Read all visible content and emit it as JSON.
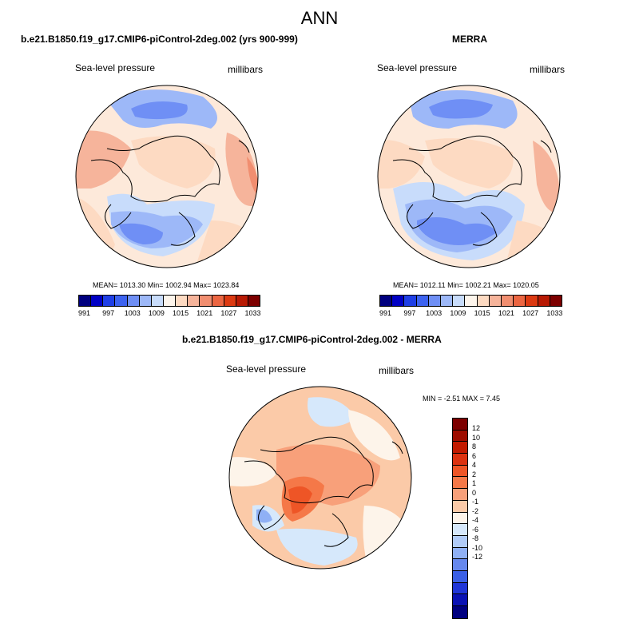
{
  "title": "ANN",
  "model_panel": {
    "title": "b.e21.B1850.f19_g17.CMIP6-piControl-2deg.002 (yrs 900-999)",
    "variable": "Sea-level pressure",
    "units": "millibars",
    "stats": "MEAN= 1013.30  Min= 1002.94  Max= 1023.84"
  },
  "obs_panel": {
    "title": "MERRA",
    "variable": "Sea-level pressure",
    "units": "millibars",
    "stats": "MEAN= 1012.11  Min= 1002.21  Max= 1020.05"
  },
  "diff_panel": {
    "title": "b.e21.B1850.f19_g17.CMIP6-piControl-2deg.002 - MERRA",
    "variable": "Sea-level pressure",
    "units": "millibars",
    "stats": "MIN =  -2.51 MAX =   7.45"
  },
  "horizontal_colorbar": {
    "colors": [
      "#00007f",
      "#0000c4",
      "#1f3fe6",
      "#3d63f0",
      "#6f8ff5",
      "#9db8f8",
      "#c8dcfb",
      "#fdf5ec",
      "#fddac2",
      "#f6b49b",
      "#f18e70",
      "#ec6642",
      "#dc3a12",
      "#b81a04",
      "#7d0000"
    ],
    "labels": [
      "991",
      "997",
      "1003",
      "1009",
      "1015",
      "1021",
      "1027",
      "1033"
    ]
  },
  "vertical_colorbar": {
    "colors": [
      "#7d0000",
      "#9e0d00",
      "#c21a00",
      "#dc3210",
      "#ee5526",
      "#f57848",
      "#f8a07a",
      "#fbcaa8",
      "#fdf4ea",
      "#d6e8fb",
      "#b0cbf7",
      "#8fb0f5",
      "#6688ee",
      "#3a5fe6",
      "#2036d8",
      "#0a12b4",
      "#000080"
    ],
    "labels": [
      "12",
      "10",
      "8",
      "6",
      "4",
      "2",
      "1",
      "0",
      "-1",
      "-2",
      "-4",
      "-6",
      "-8",
      "-10",
      "-12"
    ]
  }
}
